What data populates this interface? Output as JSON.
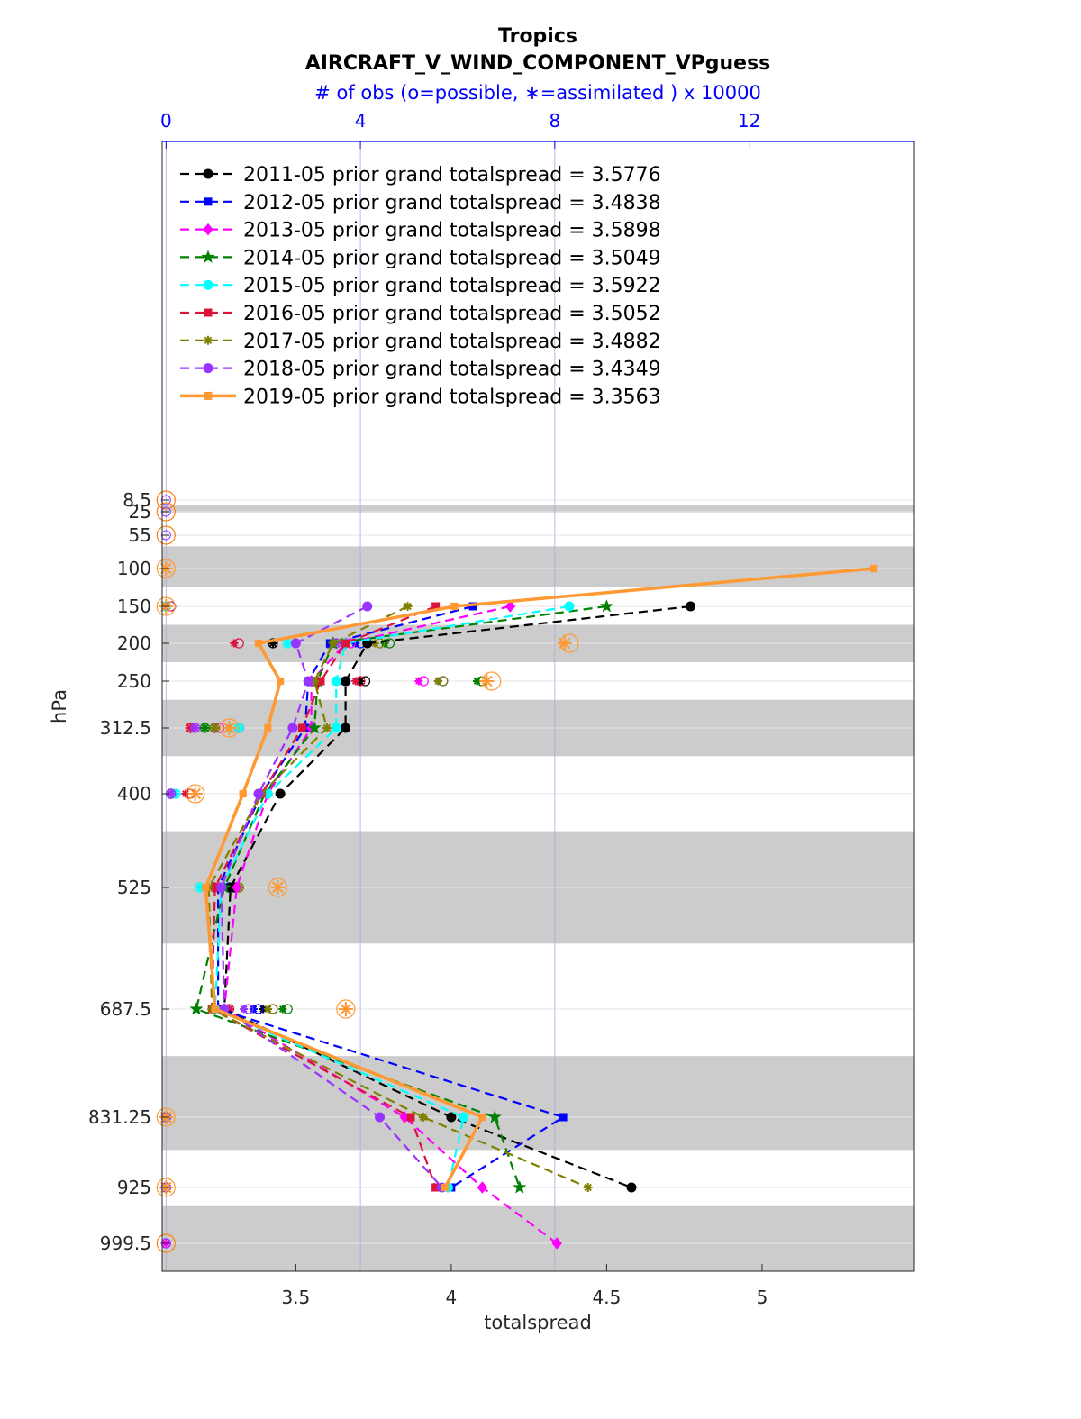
{
  "chart_data": {
    "type": "line",
    "title": "Tropics",
    "subtitle": "AIRCRAFT_V_WIND_COMPONENT_VPguess",
    "top_axis_label": "# of obs (o=possible, ∗=assimilated ) x 10000",
    "top_axis_ticks": [
      "0",
      "4",
      "8",
      "12"
    ],
    "top_axis_range": [
      -0.08,
      15.4
    ],
    "xlabel": "totalspread",
    "ylabel": "hPa",
    "xlim": [
      3.07,
      5.49
    ],
    "x_ticks": [
      "3.5",
      "4",
      "4.5",
      "5"
    ],
    "y_categories": [
      "8.5",
      "25",
      "55",
      "100",
      "150",
      "200",
      "250",
      "312.5",
      "400",
      "525",
      "687.5",
      "831.25",
      "925",
      "999.5"
    ],
    "shaded_bands": [
      [
        16,
        26
      ],
      [
        70,
        125
      ],
      [
        175,
        225
      ],
      [
        275,
        350
      ],
      [
        450,
        600
      ],
      [
        750,
        875
      ],
      [
        950,
        1050
      ]
    ],
    "legend_position": "top-left",
    "grid": true,
    "colors": {
      "obs_possible": "#ff7f0e",
      "obs_assimilated_marker": "#ff7f0e",
      "band": "#cccccc",
      "top_axis": "#0000ff"
    },
    "series": [
      {
        "name": "2011-05 prior grand totalspread = 3.5776",
        "color": "#000000",
        "marker": "circle",
        "style": "dashed",
        "levels": [
          "150",
          "200",
          "250",
          "312.5",
          "400",
          "525",
          "687.5",
          "831.25",
          "925"
        ],
        "values": [
          4.77,
          3.73,
          3.66,
          3.66,
          3.45,
          3.29,
          3.27,
          4.0,
          4.58
        ],
        "obs_possible": [
          0.1,
          2.2,
          4.1,
          1.5,
          0.1,
          1.4,
          2.2,
          0,
          0
        ],
        "obs_assimilated": [
          0,
          2.2,
          4.0,
          1.3,
          0.1,
          1.4,
          2.0,
          0,
          0
        ]
      },
      {
        "name": "2012-05 prior grand totalspread = 3.4838",
        "color": "#0000ff",
        "marker": "square",
        "style": "dashed",
        "levels": [
          "150",
          "200",
          "250",
          "312.5",
          "400",
          "525",
          "687.5",
          "831.25",
          "925"
        ],
        "values": [
          4.07,
          3.61,
          3.54,
          3.53,
          3.39,
          3.25,
          3.25,
          4.36,
          4.0
        ],
        "obs_possible": [
          0,
          4.0,
          5.7,
          1.0,
          0.1,
          1.3,
          1.9,
          0,
          0
        ],
        "obs_assimilated": [
          0,
          3.9,
          5.6,
          1.0,
          0.1,
          1.3,
          1.8,
          0,
          0
        ]
      },
      {
        "name": "2013-05 prior grand totalspread = 3.5898",
        "color": "#ff00ff",
        "marker": "diamond",
        "style": "dashed",
        "levels": [
          "150",
          "200",
          "250",
          "312.5",
          "400",
          "525",
          "687.5",
          "831.25",
          "925",
          "999.5"
        ],
        "values": [
          4.19,
          3.66,
          3.55,
          3.55,
          3.41,
          3.31,
          3.27,
          3.85,
          4.1,
          4.34
        ],
        "obs_possible": [
          0.1,
          3.8,
          5.3,
          1.1,
          0.1,
          1.1,
          1.3,
          0,
          0,
          0
        ],
        "obs_assimilated": [
          0,
          3.7,
          5.2,
          1.0,
          0.1,
          1.1,
          1.2,
          0,
          0,
          0
        ]
      },
      {
        "name": "2014-05 prior grand totalspread = 3.5049",
        "color": "#008000",
        "marker": "star",
        "style": "dashed",
        "levels": [
          "150",
          "200",
          "250",
          "312.5",
          "400",
          "525",
          "687.5",
          "831.25",
          "925"
        ],
        "values": [
          4.5,
          3.62,
          3.57,
          3.56,
          3.4,
          3.27,
          3.18,
          4.14,
          4.22
        ],
        "obs_possible": [
          0.1,
          4.6,
          6.5,
          0.8,
          0.1,
          1.5,
          2.5,
          0,
          0
        ],
        "obs_assimilated": [
          0,
          4.5,
          6.4,
          0.8,
          0.1,
          1.5,
          2.4,
          0,
          0
        ]
      },
      {
        "name": "2015-05 prior grand totalspread = 3.5922",
        "color": "#00ffff",
        "marker": "circle",
        "style": "dashed",
        "levels": [
          "150",
          "200",
          "250",
          "312.5",
          "400",
          "525",
          "687.5",
          "831.25",
          "925"
        ],
        "values": [
          4.38,
          3.66,
          3.63,
          3.63,
          3.41,
          3.26,
          3.24,
          4.04,
          3.99
        ],
        "obs_possible": [
          0,
          2.5,
          3.7,
          1.5,
          0.2,
          0.7,
          1.0,
          0,
          0
        ],
        "obs_assimilated": [
          0,
          2.5,
          3.6,
          1.5,
          0.2,
          0.7,
          1.0,
          0,
          0
        ]
      },
      {
        "name": "2016-05 prior grand totalspread = 3.5052",
        "color": "#dc143c",
        "marker": "square",
        "style": "dashed",
        "levels": [
          "150",
          "200",
          "250",
          "312.5",
          "400",
          "525",
          "687.5",
          "831.25",
          "925"
        ],
        "values": [
          3.95,
          3.66,
          3.58,
          3.52,
          3.39,
          3.24,
          3.23,
          3.87,
          3.95
        ],
        "obs_possible": [
          0.1,
          1.5,
          4.0,
          0.5,
          0.5,
          1.0,
          1.3,
          0,
          0
        ],
        "obs_assimilated": [
          0,
          1.4,
          3.9,
          0.5,
          0.4,
          1.0,
          1.3,
          0,
          0
        ]
      },
      {
        "name": "2017-05 prior grand totalspread = 3.4882",
        "color": "#808000",
        "marker": "asterisk",
        "style": "dashed",
        "levels": [
          "150",
          "200",
          "250",
          "312.5",
          "400",
          "525",
          "687.5",
          "831.25",
          "925"
        ],
        "values": [
          3.86,
          3.62,
          3.56,
          3.6,
          3.39,
          3.22,
          3.23,
          3.91,
          4.44
        ],
        "obs_possible": [
          0.1,
          4.4,
          5.7,
          1.0,
          0.1,
          1.5,
          2.2,
          0,
          0
        ],
        "obs_assimilated": [
          0,
          4.3,
          5.6,
          1.0,
          0.1,
          1.5,
          2.1,
          0,
          0
        ]
      },
      {
        "name": "2018-05 prior grand totalspread = 3.4349",
        "color": "#9933ff",
        "marker": "circle",
        "style": "dashed",
        "levels": [
          "150",
          "200",
          "250",
          "312.5",
          "400",
          "525",
          "687.5",
          "831.25",
          "925"
        ],
        "values": [
          3.73,
          3.5,
          3.54,
          3.49,
          3.38,
          3.26,
          3.27,
          3.77,
          3.97
        ],
        "obs_possible": [
          0.1,
          3.5,
          3.7,
          0.6,
          0.1,
          1.1,
          1.7,
          0,
          0
        ],
        "obs_assimilated": [
          0,
          3.5,
          3.6,
          0.6,
          0.1,
          1.1,
          1.6,
          0,
          0
        ]
      },
      {
        "name": "2019-05 prior grand totalspread = 3.3563",
        "color": "#ff9933",
        "marker": "square",
        "style": "solid",
        "levels": [
          "100",
          "150",
          "200",
          "250",
          "312.5",
          "400",
          "525",
          "687.5",
          "831.25",
          "925"
        ],
        "values": [
          5.36,
          4.01,
          3.38,
          3.45,
          3.41,
          3.33,
          3.21,
          3.24,
          4.1,
          3.98
        ],
        "obs_possible": [
          0,
          0,
          8.3,
          6.7,
          1.3,
          0.6,
          2.3,
          3.7,
          0,
          0
        ],
        "obs_assimilated": [
          0,
          0,
          8.2,
          6.6,
          1.3,
          0.6,
          2.3,
          3.7,
          0,
          0
        ]
      }
    ]
  }
}
